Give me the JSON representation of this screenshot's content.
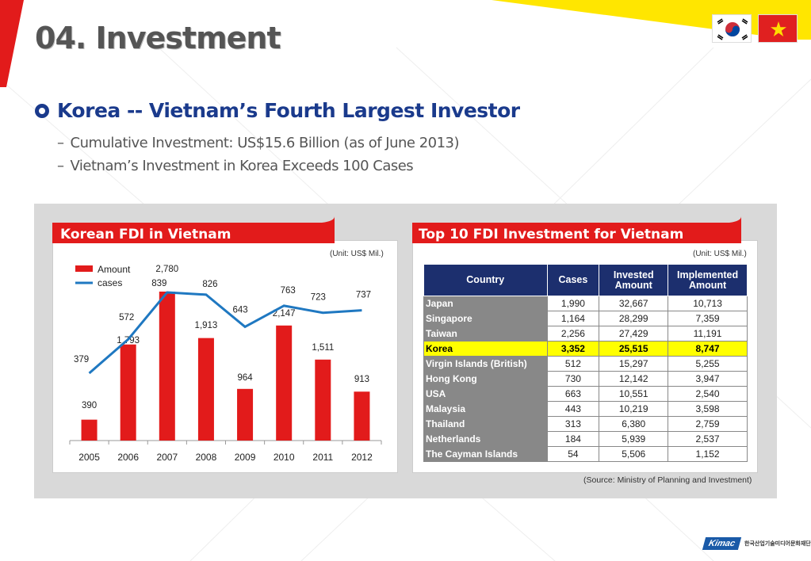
{
  "page_title": "04. Investment",
  "heading": "Korea -- Vietnam’s Fourth Largest Investor",
  "subpoints": [
    "Cumulative Investment: US$15.6 Billion (as of June 2013)",
    "Vietnam’s Investment in Korea Exceeds 100 Cases"
  ],
  "flags": [
    "korea-flag",
    "vietnam-flag"
  ],
  "colors": {
    "accent_red": "#e21b1b",
    "navy": "#1c2f6e",
    "line_blue": "#1f78c1",
    "highlight": "#ffff00"
  },
  "left_panel": {
    "title": "Korean FDI in Vietnam",
    "unit": "(Unit: US$ Mil.)"
  },
  "right_panel": {
    "title": "Top 10 FDI Investment for Vietnam",
    "unit": "(Unit: US$ Mil.)"
  },
  "chart_data": {
    "type": "bar",
    "categories": [
      "2005",
      "2006",
      "2007",
      "2008",
      "2009",
      "2010",
      "2011",
      "2012"
    ],
    "series": [
      {
        "name": "Amount",
        "type": "bar",
        "values": [
          390,
          1793,
          2780,
          1913,
          964,
          2147,
          1511,
          913
        ],
        "labels": [
          "390",
          "1,793",
          "2,780",
          "1,913",
          "964",
          "2,147",
          "1,511",
          "913"
        ]
      },
      {
        "name": "cases",
        "type": "line",
        "values": [
          379,
          572,
          839,
          826,
          643,
          763,
          723,
          737
        ],
        "labels": [
          "379",
          "572",
          "839",
          "826",
          "643",
          "763",
          "723",
          "737"
        ]
      }
    ],
    "legend_position": "top-left",
    "grid": false
  },
  "table": {
    "headers": [
      "Country",
      "Cases",
      "Invested Amount",
      "Implemented Amount"
    ],
    "rows": [
      {
        "country": "Japan",
        "cases": "1,990",
        "invested": "32,667",
        "implemented": "10,713"
      },
      {
        "country": "Singapore",
        "cases": "1,164",
        "invested": "28,299",
        "implemented": "7,359"
      },
      {
        "country": "Taiwan",
        "cases": "2,256",
        "invested": "27,429",
        "implemented": "11,191"
      },
      {
        "country": "Korea",
        "cases": "3,352",
        "invested": "25,515",
        "implemented": "8,747",
        "highlight": true
      },
      {
        "country": "Virgin Islands (British)",
        "cases": "512",
        "invested": "15,297",
        "implemented": "5,255"
      },
      {
        "country": "Hong Kong",
        "cases": "730",
        "invested": "12,142",
        "implemented": "3,947"
      },
      {
        "country": "USA",
        "cases": "663",
        "invested": "10,551",
        "implemented": "2,540"
      },
      {
        "country": "Malaysia",
        "cases": "443",
        "invested": "10,219",
        "implemented": "3,598"
      },
      {
        "country": "Thailand",
        "cases": "313",
        "invested": "6,380",
        "implemented": "2,759"
      },
      {
        "country": "Netherlands",
        "cases": "184",
        "invested": "5,939",
        "implemented": "2,537"
      },
      {
        "country": "The Cayman Islands",
        "cases": "54",
        "invested": "5,506",
        "implemented": "1,152"
      }
    ]
  },
  "source": "(Source: Ministry of Planning and Investment)",
  "logo": {
    "mark": "Kimac",
    "text": "한국산업기술미디어문화재단"
  }
}
